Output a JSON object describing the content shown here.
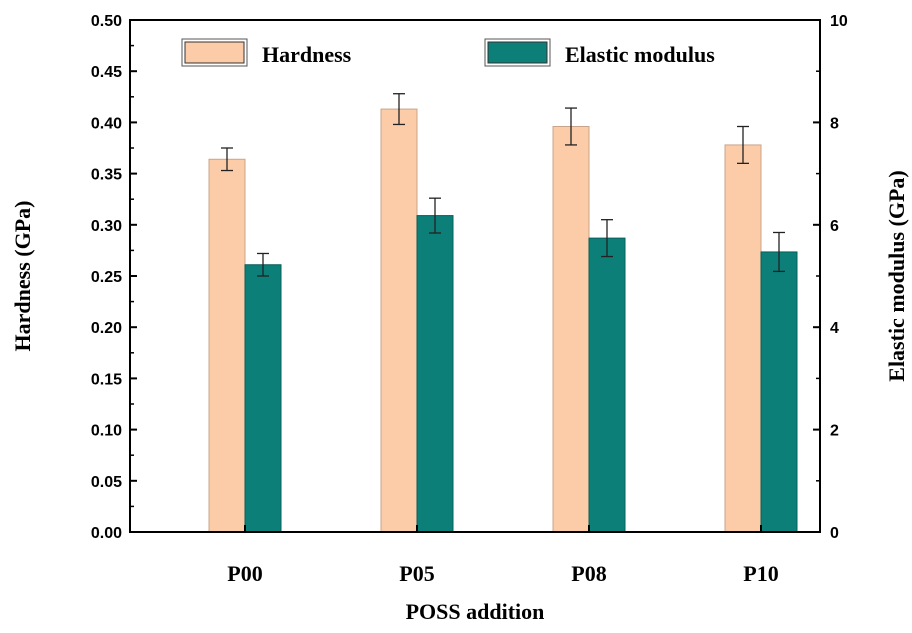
{
  "chart_data": {
    "type": "bar",
    "xlabel": "POSS addition",
    "ylabel_left": "Hardness (GPa)",
    "ylabel_right": "Elastic modulus (GPa)",
    "categories": [
      "P00",
      "P05",
      "P08",
      "P10"
    ],
    "ylim_left": [
      0,
      0.5
    ],
    "yticks_left": [
      "0.00",
      "0.05",
      "0.10",
      "0.15",
      "0.20",
      "0.25",
      "0.30",
      "0.35",
      "0.40",
      "0.45",
      "0.50"
    ],
    "ylim_right": [
      0,
      10
    ],
    "yticks_right": [
      "0",
      "2",
      "4",
      "6",
      "8",
      "10"
    ],
    "grid": false,
    "legend_position": "top",
    "series": [
      {
        "name": "Hardness",
        "axis": "left",
        "color": "#FCCBA8",
        "values": [
          0.364,
          0.413,
          0.396,
          0.378
        ],
        "errors": [
          0.011,
          0.015,
          0.018,
          0.018
        ]
      },
      {
        "name": "Elastic modulus",
        "axis": "right",
        "color": "#0B7F78",
        "values": [
          5.22,
          6.18,
          5.74,
          5.47
        ],
        "errors": [
          0.22,
          0.34,
          0.36,
          0.38
        ]
      }
    ]
  }
}
